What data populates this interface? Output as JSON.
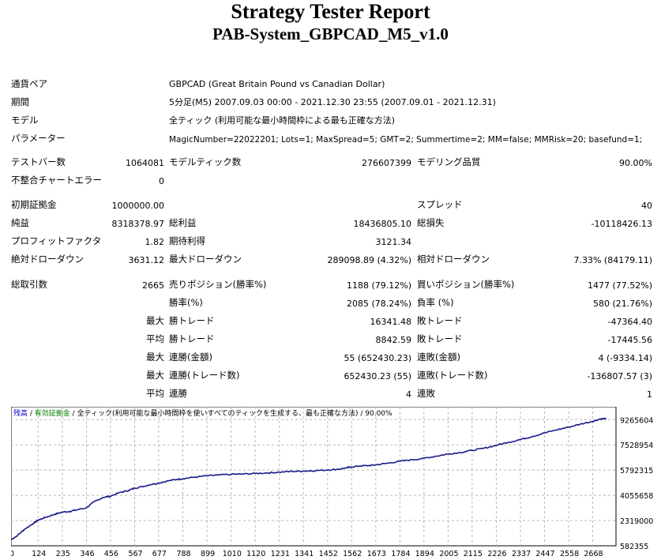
{
  "report": {
    "title": "Strategy Tester Report",
    "subtitle": "PAB-System_GBPCAD_M5_v1.0"
  },
  "info": {
    "symbol_label": "通貨ペア",
    "symbol_value": "GBPCAD (Great Britain Pound vs Canadian Dollar)",
    "period_label": "期間",
    "period_value": "5分足(M5) 2007.09.03 00:00 - 2021.12.30 23:55 (2007.09.01 - 2021.12.31)",
    "model_label": "モデル",
    "model_value": "全ティック (利用可能な最小時間枠による最も正確な方法)",
    "params_label": "パラメーター",
    "params_value": "MagicNumber=22022201; Lots=1; MaxSpread=5; GMT=2; Summertime=2; MM=false; MMRisk=20; basefund=1;"
  },
  "stats": {
    "bars_label": "テストバー数",
    "bars_value": "1064081",
    "ticks_label": "モデルティック数",
    "ticks_value": "276607399",
    "quality_label": "モデリング品質",
    "quality_value": "90.00%",
    "mismatch_label": "不整合チャートエラー",
    "mismatch_value": "0",
    "deposit_label": "初期証拠金",
    "deposit_value": "1000000.00",
    "spread_label": "スプレッド",
    "spread_value": "40",
    "net_label": "純益",
    "net_value": "8318378.97",
    "gross_profit_label": "総利益",
    "gross_profit_value": "18436805.10",
    "gross_loss_label": "総損失",
    "gross_loss_value": "-10118426.13",
    "pf_label": "プロフィットファクタ",
    "pf_value": "1.82",
    "expected_label": "期待利得",
    "expected_value": "3121.34",
    "abs_dd_label": "絶対ドローダウン",
    "abs_dd_value": "3631.12",
    "max_dd_label": "最大ドローダウン",
    "max_dd_value": "289098.89 (4.32%)",
    "rel_dd_label": "相対ドローダウン",
    "rel_dd_value": "7.33% (84179.11)",
    "trades_label": "総取引数",
    "trades_value": "2665",
    "short_label": "売りポジション(勝率%)",
    "short_value": "1188 (79.12%)",
    "long_label": "買いポジション(勝率%)",
    "long_value": "1477 (77.52%)",
    "win_rate_label": "勝率(%)",
    "win_rate_value": "2085 (78.24%)",
    "loss_rate_label": "負率 (%)",
    "loss_rate_value": "580 (21.76%)",
    "max_prefix": "最大",
    "avg_prefix": "平均",
    "largest_win_label": "勝トレード",
    "largest_win_value": "16341.48",
    "largest_loss_label": "敗トレード",
    "largest_loss_value": "-47364.40",
    "avg_win_label": "勝トレード",
    "avg_win_value": "8842.59",
    "avg_loss_label": "敗トレード",
    "avg_loss_value": "-17445.56",
    "max_cons_win_label": "連勝(金額)",
    "max_cons_win_value": "55 (652430.23)",
    "max_cons_loss_label": "連敗(金額)",
    "max_cons_loss_value": "4 (-9334.14)",
    "max_cons_profit_label": "連勝(トレード数)",
    "max_cons_profit_value": "652430.23 (55)",
    "max_cons_lossamt_label": "連敗(トレード数)",
    "max_cons_lossamt_value": "-136807.57 (3)",
    "avg_cons_win_label": "連勝",
    "avg_cons_win_value": "4",
    "avg_cons_loss_label": "連敗",
    "avg_cons_loss_value": "1"
  },
  "chart_data": {
    "type": "line",
    "legend": {
      "balance": "残高",
      "sep1": " / ",
      "equity": "有効証拠金",
      "sep2": " / ",
      "rest": "全ティック(利用可能な最小時間枠を使いすべてのティックを生成する、最も正確な方法) / 90.00%"
    },
    "colors": {
      "balance": "#1a1a8c",
      "equity": "#008000",
      "legend_balance": "#0000cc",
      "grid": "#b8b8b8"
    },
    "grid": true,
    "x_ticks": [
      0,
      124,
      235,
      346,
      456,
      567,
      677,
      788,
      899,
      1010,
      1120,
      1231,
      1341,
      1452,
      1562,
      1673,
      1784,
      1894,
      2005,
      2115,
      2226,
      2337,
      2447,
      2558,
      2668
    ],
    "y_ticks": [
      582355,
      2319000,
      4055658,
      5792315,
      7528954,
      9265604
    ],
    "xlim": [
      0,
      2775
    ],
    "ylim": [
      582355,
      10150000
    ],
    "x": [
      0,
      30,
      60,
      100,
      124,
      160,
      200,
      235,
      270,
      300,
      346,
      380,
      420,
      456,
      500,
      540,
      567,
      600,
      640,
      677,
      720,
      760,
      788,
      840,
      899,
      950,
      1010,
      1060,
      1120,
      1180,
      1231,
      1290,
      1341,
      1400,
      1452,
      1500,
      1540,
      1562,
      1600,
      1640,
      1673,
      1720,
      1784,
      1840,
      1894,
      1950,
      2005,
      2060,
      2115,
      2170,
      2226,
      2280,
      2337,
      2390,
      2447,
      2500,
      2558,
      2610,
      2668,
      2700,
      2730
    ],
    "y": [
      1000000,
      1300000,
      1700000,
      2100000,
      2350000,
      2550000,
      2750000,
      2900000,
      2950000,
      3050000,
      3200000,
      3600000,
      3900000,
      4000000,
      4250000,
      4400000,
      4550000,
      4650000,
      4800000,
      4900000,
      5050000,
      5150000,
      5200000,
      5300000,
      5400000,
      5450000,
      5500000,
      5520000,
      5560000,
      5600000,
      5650000,
      5700000,
      5720000,
      5760000,
      5800000,
      5850000,
      5950000,
      6000000,
      6080000,
      6100000,
      6150000,
      6250000,
      6400000,
      6500000,
      6600000,
      6750000,
      6900000,
      7000000,
      7150000,
      7300000,
      7500000,
      7700000,
      7900000,
      8100000,
      8350000,
      8550000,
      8750000,
      8950000,
      9150000,
      9300000,
      9350000
    ]
  }
}
